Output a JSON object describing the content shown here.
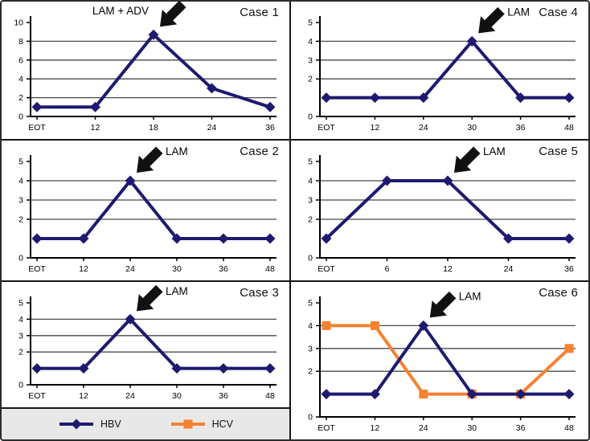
{
  "legend": {
    "items": [
      {
        "label": "HBV",
        "color": "#1e1a70",
        "marker": "diamond"
      },
      {
        "label": "HCV",
        "color": "#f58231",
        "marker": "square"
      }
    ],
    "background": "#e8e8e8"
  },
  "arrow_color": "#111111",
  "gridline_color": "#4a4a4a",
  "chart_data": [
    {
      "type": "line",
      "title": "Case 1",
      "annotation": {
        "label": "LAM + ADV",
        "target_index": 2,
        "side": "left"
      },
      "x_labels": [
        "EOT",
        "12",
        "18",
        "24",
        "36"
      ],
      "ylim": [
        0,
        10
      ],
      "y_ticks": [
        0,
        2,
        4,
        6,
        8,
        10
      ],
      "grid_ticks": [
        2,
        4,
        6,
        8
      ],
      "series": [
        {
          "name": "HBV",
          "color": "#1e1a70",
          "marker": "diamond",
          "values": [
            1,
            1,
            8.7,
            3,
            1
          ]
        }
      ]
    },
    {
      "type": "line",
      "title": "Case 2",
      "annotation": {
        "label": "LAM",
        "target_index": 2,
        "side": "right"
      },
      "x_labels": [
        "EOT",
        "12",
        "24",
        "30",
        "36",
        "48"
      ],
      "ylim": [
        0,
        5
      ],
      "y_ticks": [
        0,
        2,
        3,
        4,
        5
      ],
      "grid_ticks": [
        2,
        3,
        4
      ],
      "series": [
        {
          "name": "HBV",
          "color": "#1e1a70",
          "marker": "diamond",
          "values": [
            1,
            1,
            4,
            1,
            1,
            1
          ]
        }
      ]
    },
    {
      "type": "line",
      "title": "Case 3",
      "annotation": {
        "label": "LAM",
        "target_index": 2,
        "side": "right"
      },
      "x_labels": [
        "EOT",
        "12",
        "24",
        "30",
        "36",
        "48"
      ],
      "ylim": [
        0,
        5
      ],
      "y_ticks": [
        0,
        2,
        3,
        4,
        5
      ],
      "grid_ticks": [
        2,
        3,
        4
      ],
      "series": [
        {
          "name": "HBV",
          "color": "#1e1a70",
          "marker": "diamond",
          "values": [
            1,
            1,
            4,
            1,
            1,
            1
          ]
        }
      ]
    },
    {
      "type": "line",
      "title": "Case 4",
      "annotation": {
        "label": "LAM",
        "target_index": 3,
        "side": "right"
      },
      "x_labels": [
        "EOT",
        "12",
        "24",
        "30",
        "36",
        "48"
      ],
      "ylim": [
        0,
        5
      ],
      "y_ticks": [
        0,
        2,
        3,
        4,
        5
      ],
      "grid_ticks": [
        2,
        3,
        4
      ],
      "series": [
        {
          "name": "HBV",
          "color": "#1e1a70",
          "marker": "diamond",
          "values": [
            1,
            1,
            1,
            4,
            1,
            1
          ]
        }
      ]
    },
    {
      "type": "line",
      "title": "Case 5",
      "annotation": {
        "label": "LAM",
        "target_index": 2,
        "side": "right"
      },
      "x_labels": [
        "EOT",
        "6",
        "12",
        "24",
        "36"
      ],
      "ylim": [
        0,
        5
      ],
      "y_ticks": [
        0,
        2,
        3,
        4,
        5
      ],
      "grid_ticks": [
        2,
        3,
        4
      ],
      "series": [
        {
          "name": "HBV",
          "color": "#1e1a70",
          "marker": "diamond",
          "values": [
            1,
            4,
            4,
            1,
            1
          ]
        }
      ]
    },
    {
      "type": "line",
      "title": "Case 6",
      "annotation": {
        "label": "LAM",
        "target_index": 2,
        "side": "right"
      },
      "x_labels": [
        "EOT",
        "12",
        "24",
        "30",
        "36",
        "48"
      ],
      "ylim": [
        0,
        5
      ],
      "y_ticks": [
        0,
        2,
        3,
        4,
        5
      ],
      "grid_ticks": [
        2,
        3,
        4
      ],
      "series": [
        {
          "name": "HCV",
          "color": "#f58231",
          "marker": "square",
          "values": [
            4,
            4,
            1,
            1,
            1,
            3
          ]
        },
        {
          "name": "HBV",
          "color": "#1e1a70",
          "marker": "diamond",
          "values": [
            1,
            1,
            4,
            1,
            1,
            1
          ]
        }
      ]
    }
  ]
}
